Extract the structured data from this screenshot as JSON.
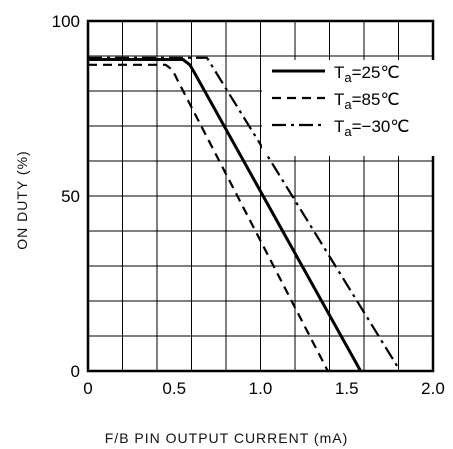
{
  "chart_data": {
    "type": "line",
    "title": "",
    "xlabel": "F/B PIN OUTPUT CURRENT (mA)",
    "ylabel": "ON DUTY (%)",
    "xlim": [
      0,
      2.0
    ],
    "ylim": [
      0,
      100
    ],
    "x_ticks": [
      0,
      0.5,
      1.0,
      1.5,
      2.0
    ],
    "x_tick_labels": [
      "0",
      "0.5",
      "1.0",
      "1.5",
      "2.0"
    ],
    "y_ticks": [
      0,
      50,
      100
    ],
    "y_tick_labels": [
      "0",
      "50",
      "100"
    ],
    "grid": true,
    "legend_position": "top-right",
    "series": [
      {
        "name": "Ta=25°C",
        "legend_base": "T",
        "legend_sub": "a",
        "legend_rest": "=25℃",
        "style": "solid",
        "points": [
          [
            0,
            89
          ],
          [
            0.55,
            89
          ],
          [
            0.59,
            87.5
          ],
          [
            0.62,
            85
          ],
          [
            1.58,
            0
          ]
        ]
      },
      {
        "name": "Ta=85°C",
        "legend_base": "T",
        "legend_sub": "a",
        "legend_rest": "=85℃",
        "style": "dashed",
        "points": [
          [
            0,
            87.5
          ],
          [
            0.45,
            87.5
          ],
          [
            0.49,
            86
          ],
          [
            0.52,
            83
          ],
          [
            1.39,
            0
          ]
        ]
      },
      {
        "name": "Ta=-30°C",
        "legend_base": "T",
        "legend_sub": "a",
        "legend_rest": "=−30℃",
        "style": "dashdot",
        "points": [
          [
            0,
            89.5
          ],
          [
            0.69,
            89.5
          ],
          [
            1.81,
            0
          ]
        ]
      }
    ]
  }
}
